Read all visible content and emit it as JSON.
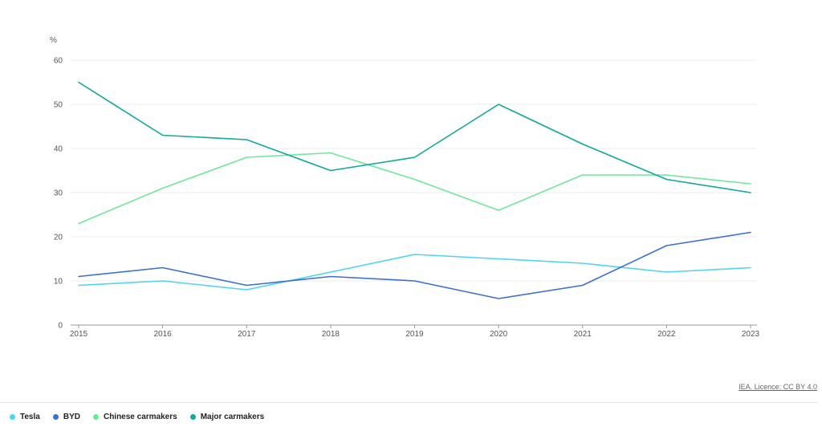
{
  "source": {
    "label": "IEA. Licence: CC BY 4.0"
  },
  "chart_data": {
    "type": "line",
    "ylabel": "%",
    "ylim": [
      0,
      60
    ],
    "yticks": [
      0,
      10,
      20,
      30,
      40,
      50,
      60
    ],
    "x": [
      "2015",
      "2016",
      "2017",
      "2018",
      "2019",
      "2020",
      "2021",
      "2022",
      "2023"
    ],
    "grid": true,
    "legend_position": "bottom-left",
    "series": [
      {
        "name": "Tesla",
        "color": "#4dd4f0",
        "values": [
          9,
          10,
          8,
          12,
          16,
          15,
          14,
          12,
          13
        ]
      },
      {
        "name": "BYD",
        "color": "#3b6fd1",
        "values": [
          11,
          13,
          9,
          11,
          10,
          6,
          9,
          18,
          21
        ]
      },
      {
        "name": "Chinese carmakers",
        "color": "#6ee89a",
        "values": [
          23,
          31,
          38,
          39,
          33,
          26,
          34,
          34,
          32
        ]
      },
      {
        "name": "Major carmakers",
        "color": "#0fa89a",
        "values": [
          55,
          43,
          42,
          35,
          38,
          50,
          41,
          33,
          30
        ]
      }
    ]
  }
}
